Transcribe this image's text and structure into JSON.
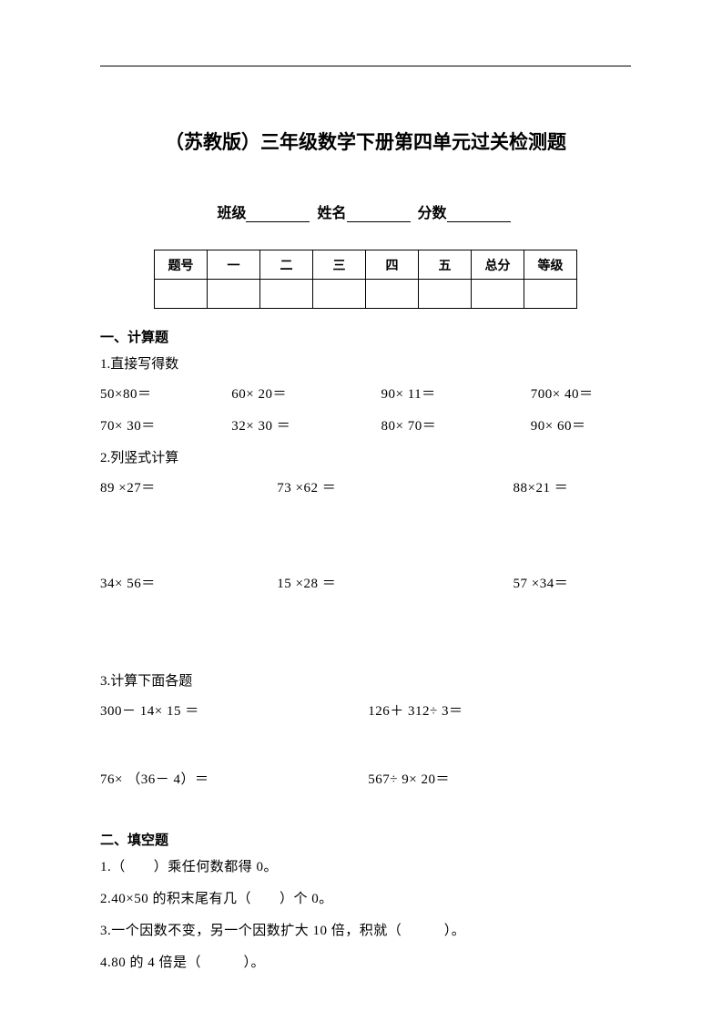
{
  "title": "（苏教版）三年级数学下册第四单元过关检测题",
  "info": {
    "class_label": "班级",
    "name_label": "姓名",
    "score_label": "分数"
  },
  "score_table": {
    "headers": [
      "题号",
      "一",
      "二",
      "三",
      "四",
      "五",
      "总分",
      "等级"
    ]
  },
  "sections": {
    "s1": {
      "heading": "一、计算题",
      "q1": {
        "label": "1.直接写得数",
        "row1": [
          "50×80＝",
          "60× 20＝",
          "90× 11＝",
          "700× 40＝"
        ],
        "row2": [
          "70× 30＝",
          "32× 30 ＝",
          "80× 70＝",
          "90× 60＝"
        ]
      },
      "q2": {
        "label": "2.列竖式计算",
        "row1": [
          "89 ×27＝",
          "73 ×62 ＝",
          "88×21 ＝"
        ],
        "row2": [
          "34× 56＝",
          "15 ×28 ＝",
          "57 ×34＝"
        ]
      },
      "q3": {
        "label": "3.计算下面各题",
        "row1": [
          "300－ 14× 15 ＝",
          "126＋ 312÷ 3＝"
        ],
        "row2": [
          "76× （36－ 4）＝",
          "567÷ 9× 20＝"
        ]
      }
    },
    "s2": {
      "heading": "二、填空题",
      "items": [
        "1.（　　）乘任何数都得 0。",
        "2.40×50 的积末尾有几（　　）个 0。",
        "3.一个因数不变，另一个因数扩大 10 倍，积就（　　　）。",
        "4.80 的 4 倍是（　　　）。"
      ]
    }
  }
}
